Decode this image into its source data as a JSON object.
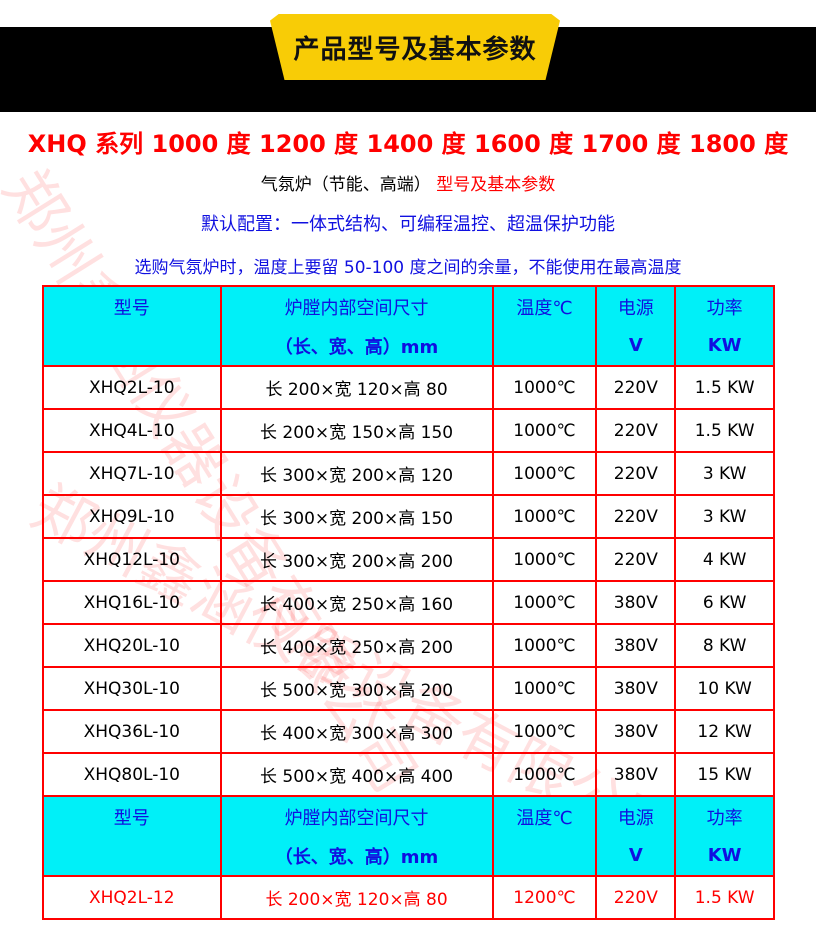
{
  "banner_title": "产品型号及基本参数",
  "series_line": "XHQ 系列 1000 度 1200 度 1400 度 1600 度 1700 度 1800 度",
  "subtitle_black": "气氛炉（节能、高端）",
  "subtitle_red": "型号及基本参数",
  "default_config": "默认配置：一体式结构、可编程温控、超温保护功能",
  "note": "选购气氛炉时，温度上要留 50-100 度之间的余量，不能使用在最高温度",
  "watermark": "郑州鑫涵仪器设备有限公司",
  "header": {
    "model": "型号",
    "chamber": "炉膛内部空间尺寸",
    "chamber_unit": "（长、宽、高）mm",
    "temp": "温度℃",
    "power_source": "电源",
    "power_source_unit": "V",
    "power": "功率",
    "power_unit": "KW"
  },
  "rows_1000": [
    [
      "XHQ2L-10",
      "长 200×宽 120×高 80",
      "1000℃",
      "220V",
      "1.5 KW"
    ],
    [
      "XHQ4L-10",
      "长 200×宽 150×高 150",
      "1000℃",
      "220V",
      "1.5 KW"
    ],
    [
      "XHQ7L-10",
      "长 300×宽 200×高 120",
      "1000℃",
      "220V",
      "3 KW"
    ],
    [
      "XHQ9L-10",
      "长 300×宽 200×高 150",
      "1000℃",
      "220V",
      "3 KW"
    ],
    [
      "XHQ12L-10",
      "长 300×宽 200×高 200",
      "1000℃",
      "220V",
      "4 KW"
    ],
    [
      "XHQ16L-10",
      "长 400×宽 250×高 160",
      "1000℃",
      "380V",
      "6 KW"
    ],
    [
      "XHQ20L-10",
      "长 400×宽 250×高 200",
      "1000℃",
      "380V",
      "8 KW"
    ],
    [
      "XHQ30L-10",
      "长 500×宽 300×高 200",
      "1000℃",
      "380V",
      "10 KW"
    ],
    [
      "XHQ36L-10",
      "长 400×宽 300×高 300",
      "1000℃",
      "380V",
      "12 KW"
    ],
    [
      "XHQ80L-10",
      "长 500×宽 400×高 400",
      "1000℃",
      "380V",
      "15 KW"
    ]
  ],
  "rows_1200": [
    [
      "XHQ2L-12",
      "长 200×宽 120×高 80",
      "1200℃",
      "220V",
      "1.5 KW"
    ]
  ],
  "colors": {
    "header_bg": "#00f0f8",
    "border": "#ff0000",
    "banner": "#f8cc06",
    "blue_text": "#1010e0",
    "red_text": "#ff0000"
  }
}
